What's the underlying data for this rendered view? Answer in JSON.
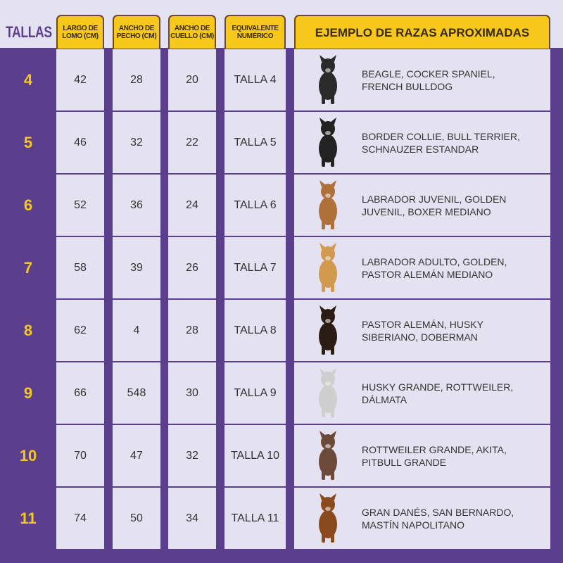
{
  "header": {
    "tallas": "TALLAS",
    "columns": [
      "LARGO DE LOMO (CM)",
      "ANCHO DE PECHO (CM)",
      "ANCHO DE CUELLO (CM)",
      "EQUIVALENTE NUMÉRICO",
      "EJEMPLO DE RAZAS APROXIMADAS"
    ]
  },
  "rows": [
    {
      "talla": "4",
      "largo": "42",
      "pecho": "28",
      "cuello": "20",
      "equiv": "TALLA 4",
      "razas": "BEAGLE, COCKER SPANIEL, FRENCH BULLDOG",
      "dog_color": "#2a2a2a"
    },
    {
      "talla": "5",
      "largo": "46",
      "pecho": "32",
      "cuello": "22",
      "equiv": "TALLA 5",
      "razas": "BORDER COLLIE, BULL TERRIER, SCHNAUZER ESTANDAR",
      "dog_color": "#222222"
    },
    {
      "talla": "6",
      "largo": "52",
      "pecho": "36",
      "cuello": "24",
      "equiv": "TALLA 6",
      "razas": "LABRADOR JUVENIL, GOLDEN JUVENIL, BOXER MEDIANO",
      "dog_color": "#b0703a"
    },
    {
      "talla": "7",
      "largo": "58",
      "pecho": "39",
      "cuello": "26",
      "equiv": "TALLA 7",
      "razas": "LABRADOR ADULTO, GOLDEN, PASTOR ALEMÁN MEDIANO",
      "dog_color": "#d19a4f"
    },
    {
      "talla": "8",
      "largo": "62",
      "pecho": "4",
      "cuello": "28",
      "equiv": "TALLA 8",
      "razas": "PASTOR ALEMÁN, HUSKY SIBERIANO, DOBERMAN",
      "dog_color": "#2b1d14"
    },
    {
      "talla": "9",
      "largo": "66",
      "pecho": "548",
      "cuello": "30",
      "equiv": "TALLA 9",
      "razas": "HUSKY GRANDE, ROTTWEILER, DÁLMATA",
      "dog_color": "#cfcfcf"
    },
    {
      "talla": "10",
      "largo": "70",
      "pecho": "47",
      "cuello": "32",
      "equiv": "TALLA 10",
      "razas": "ROTTWEILER GRANDE, AKITA, PITBULL GRANDE",
      "dog_color": "#6b4a3a"
    },
    {
      "talla": "11",
      "largo": "74",
      "pecho": "50",
      "cuello": "34",
      "equiv": "TALLA 11",
      "razas": "GRAN DANÉS, SAN BERNARDO, MASTÍN NAPOLITANO",
      "dog_color": "#8a4a1e"
    }
  ]
}
